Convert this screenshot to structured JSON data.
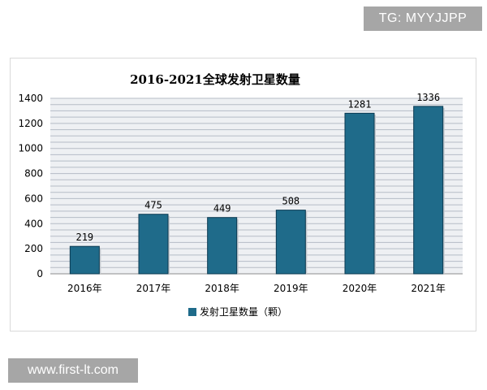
{
  "watermarks": {
    "top": "TG: MYYJJPP",
    "bottom": "www.first-lt.com"
  },
  "colors": {
    "bar": "#1f6b8a",
    "bar_border": "#0b3a52",
    "gridline": "#b5bcc6",
    "plot_background": "#eef0f3"
  },
  "chart_data": {
    "type": "bar",
    "title": "2016-2021全球发射卫星数量",
    "xlabel": "",
    "ylabel": "",
    "categories": [
      "2016年",
      "2017年",
      "2018年",
      "2019年",
      "2020年",
      "2021年"
    ],
    "series": [
      {
        "name": "发射卫星数量（颗）",
        "values": [
          219,
          475,
          449,
          508,
          1281,
          1336
        ]
      }
    ],
    "data_labels": [
      "219",
      "475",
      "449",
      "508",
      "1281",
      "1336"
    ],
    "ylim": [
      0,
      1400
    ],
    "yticks": [
      0,
      200,
      400,
      600,
      800,
      1000,
      1200,
      1400
    ],
    "ytick_labels": [
      "0",
      "200",
      "400",
      "600",
      "800",
      "1000",
      "1200",
      "1400"
    ],
    "minor_grid_step": 50,
    "grid": true,
    "legend_position": "bottom"
  }
}
